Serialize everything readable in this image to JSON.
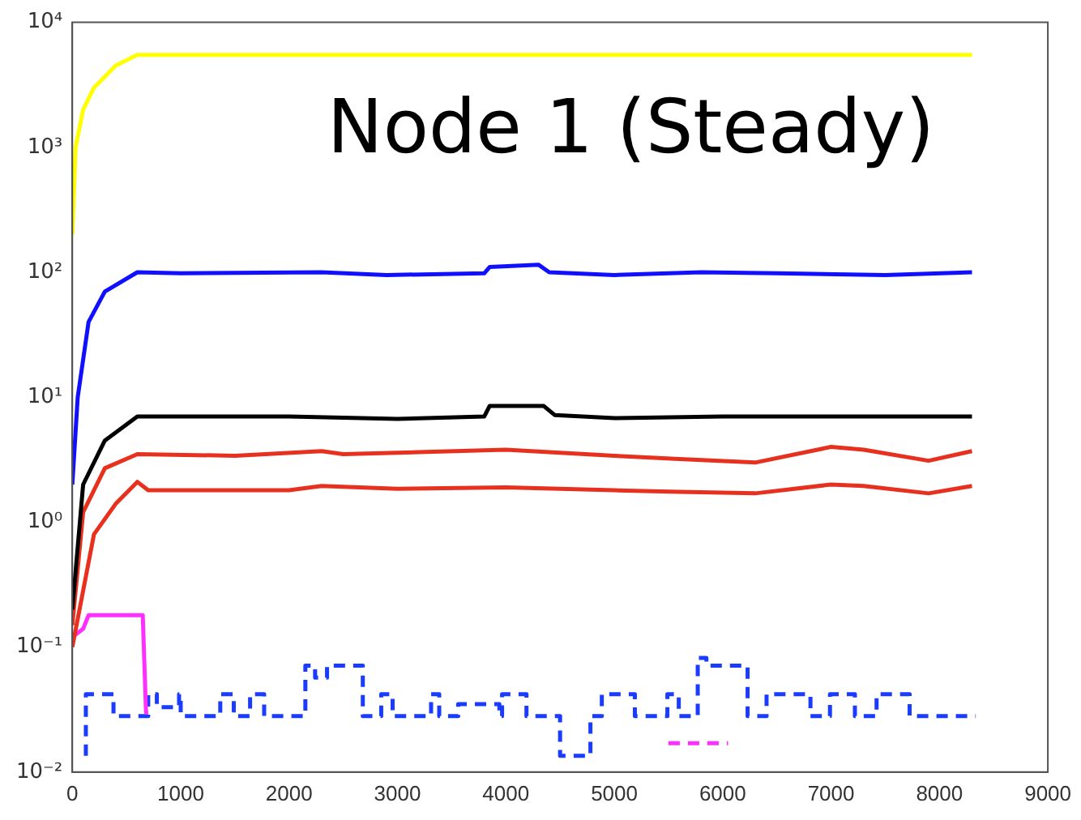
{
  "chart_data": {
    "type": "line",
    "title": "Node 1 (Steady)",
    "xlim": [
      0,
      9000
    ],
    "xticks": [
      0,
      1000,
      2000,
      3000,
      4000,
      5000,
      6000,
      7000,
      8000,
      9000
    ],
    "ylim": [
      0.01,
      10000
    ],
    "log": "y",
    "yticks": [
      {
        "value": 0.01,
        "label": "10⁻²"
      },
      {
        "value": 0.1,
        "label": "10⁻¹"
      },
      {
        "value": 1,
        "label": "10⁰"
      },
      {
        "value": 10,
        "label": "10¹"
      },
      {
        "value": 100,
        "label": "10²"
      },
      {
        "value": 1000,
        "label": "10³"
      },
      {
        "value": 10000,
        "label": "10⁴"
      }
    ],
    "grid": false,
    "legend": false,
    "marker": "none",
    "line_style": "solid",
    "series": [
      {
        "color": "#ffff00",
        "x": [
          0,
          30,
          100,
          200,
          400,
          600,
          8300
        ],
        "values": [
          200,
          1000,
          2000,
          3000,
          4500,
          5500,
          5500
        ]
      },
      {
        "color": "#1010ff",
        "x": [
          0,
          50,
          150,
          300,
          600,
          1000,
          2300,
          2900,
          3800,
          3850,
          4300,
          4400,
          5000,
          5800,
          6500,
          7500,
          8300
        ],
        "values": [
          2,
          10,
          40,
          70,
          100,
          98,
          100,
          95,
          98,
          110,
          115,
          100,
          95,
          100,
          98,
          95,
          100
        ]
      },
      {
        "color": "#000000",
        "x": [
          0,
          100,
          300,
          600,
          2000,
          3000,
          3800,
          3850,
          4350,
          4450,
          5000,
          6000,
          7000,
          8300
        ],
        "values": [
          0.2,
          2,
          4.5,
          7,
          7,
          6.7,
          7,
          8.5,
          8.5,
          7.2,
          6.8,
          7,
          7,
          7
        ]
      },
      {
        "color": "#e8301e",
        "x": [
          0,
          100,
          300,
          600,
          1500,
          2300,
          2500,
          4000,
          5000,
          5600,
          6300,
          7000,
          7300,
          7900,
          8300
        ],
        "values": [
          0.15,
          1.2,
          2.7,
          3.5,
          3.4,
          3.7,
          3.5,
          3.8,
          3.4,
          3.2,
          3.0,
          4.0,
          3.8,
          3.1,
          3.7
        ]
      },
      {
        "color": "#e8301e",
        "x": [
          0,
          200,
          400,
          600,
          700,
          2000,
          2300,
          3000,
          4000,
          5000,
          5600,
          6300,
          7000,
          7300,
          7900,
          8300
        ],
        "values": [
          0.1,
          0.8,
          1.4,
          2.1,
          1.8,
          1.8,
          1.95,
          1.85,
          1.9,
          1.8,
          1.75,
          1.7,
          2.0,
          1.95,
          1.7,
          1.95
        ]
      },
      {
        "color": "#ff30ff",
        "x": [
          0,
          100,
          150,
          650,
          680,
          700
        ],
        "values": [
          0.12,
          0.14,
          0.18,
          0.18,
          0.03,
          0.03
        ]
      },
      {
        "color": "#ff30ff",
        "line_style": "dashed",
        "x": [
          5500,
          6050
        ],
        "values": [
          0.017,
          0.017
        ]
      },
      {
        "type": "step",
        "color": "#1a3cff",
        "line_style": "dashed",
        "x": [
          125,
          380,
          700,
          780,
          985,
          1000,
          1365,
          1490,
          1640,
          1770,
          2150,
          2240,
          2350,
          2680,
          2850,
          2955,
          3310,
          3385,
          3560,
          3940,
          3965,
          4190,
          4500,
          4780,
          4885,
          5190,
          5490,
          5595,
          5770,
          5850,
          6230,
          6405,
          6810,
          6990,
          7220,
          7420,
          7725,
          7830,
          8335
        ],
        "values": [
          0.0135,
          0.042,
          0.028,
          0.042,
          0.033,
          0.042,
          0.028,
          0.042,
          0.028,
          0.042,
          0.028,
          0.071,
          0.057,
          0.071,
          0.028,
          0.042,
          0.028,
          0.042,
          0.028,
          0.035,
          0.028,
          0.042,
          0.028,
          0.0135,
          0.028,
          0.042,
          0.028,
          0.042,
          0.028,
          0.082,
          0.071,
          0.028,
          0.042,
          0.028,
          0.042,
          0.028,
          0.042,
          0.028,
          0.028
        ]
      }
    ]
  }
}
